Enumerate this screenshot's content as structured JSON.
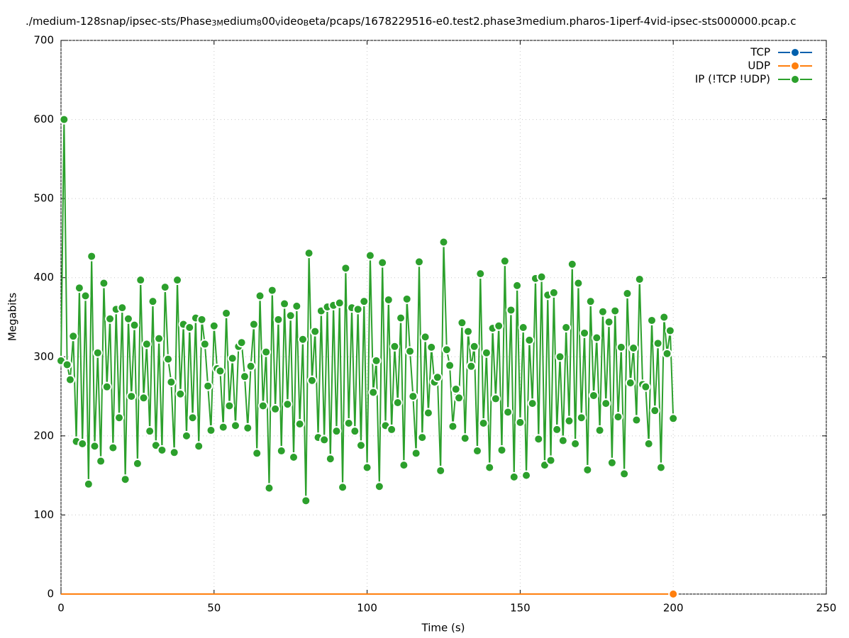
{
  "chart_data": {
    "type": "line",
    "title": [
      "./medium-128snap/ipsec-sts/Phase",
      "3M",
      "edium",
      "8",
      "00",
      "V",
      "ideo",
      "B",
      "eta/pcaps/1678229516-e0.test2.phase3medium.pharos-1iperf-4vid-ipsec-sts000000.pcap.c"
    ],
    "xlabel": "Time (s)",
    "ylabel": "Megabits",
    "xlim": [
      0,
      250
    ],
    "xticks": [
      0,
      50,
      100,
      150,
      200,
      250
    ],
    "ylim": [
      0,
      700
    ],
    "yticks": [
      0,
      100,
      200,
      300,
      400,
      500,
      600,
      700
    ],
    "grid": true,
    "legend": "top-right",
    "x": [
      0,
      1,
      2,
      3,
      4,
      5,
      6,
      7,
      8,
      9,
      10,
      11,
      12,
      13,
      14,
      15,
      16,
      17,
      18,
      19,
      20,
      21,
      22,
      23,
      24,
      25,
      26,
      27,
      28,
      29,
      30,
      31,
      32,
      33,
      34,
      35,
      36,
      37,
      38,
      39,
      40,
      41,
      42,
      43,
      44,
      45,
      46,
      47,
      48,
      49,
      50,
      51,
      52,
      53,
      54,
      55,
      56,
      57,
      58,
      59,
      60,
      61,
      62,
      63,
      64,
      65,
      66,
      67,
      68,
      69,
      70,
      71,
      72,
      73,
      74,
      75,
      76,
      77,
      78,
      79,
      80,
      81,
      82,
      83,
      84,
      85,
      86,
      87,
      88,
      89,
      90,
      91,
      92,
      93,
      94,
      95,
      96,
      97,
      98,
      99,
      100,
      101,
      102,
      103,
      104,
      105,
      106,
      107,
      108,
      109,
      110,
      111,
      112,
      113,
      114,
      115,
      116,
      117,
      118,
      119,
      120,
      121,
      122,
      123,
      124,
      125,
      126,
      127,
      128,
      129,
      130,
      131,
      132,
      133,
      134,
      135,
      136,
      137,
      138,
      139,
      140,
      141,
      142,
      143,
      144,
      145,
      146,
      147,
      148,
      149,
      150,
      151,
      152,
      153,
      154,
      155,
      156,
      157,
      158,
      159,
      160,
      161,
      162,
      163,
      164,
      165,
      166,
      167,
      168,
      169,
      170,
      171,
      172,
      173,
      174,
      175,
      176,
      177,
      178,
      179,
      180,
      181,
      182,
      183,
      184,
      185,
      186,
      187,
      188,
      189,
      190,
      191,
      192,
      193,
      194,
      195,
      196,
      197,
      198,
      199,
      200
    ],
    "series": [
      {
        "name": "TCP",
        "color": "#0060ad",
        "values": [
          0,
          0,
          0,
          0,
          0,
          0,
          0,
          0,
          0,
          0,
          0,
          0,
          0,
          0,
          0,
          0,
          0,
          0,
          0,
          0,
          0,
          0,
          0,
          0,
          0,
          0,
          0,
          0,
          0,
          0,
          0,
          0,
          0,
          0,
          0,
          0,
          0,
          0,
          0,
          0,
          0,
          0,
          0,
          0,
          0,
          0,
          0,
          0,
          0,
          0,
          0,
          0,
          0,
          0,
          0,
          0,
          0,
          0,
          0,
          0,
          0,
          0,
          0,
          0,
          0,
          0,
          0,
          0,
          0,
          0,
          0,
          0,
          0,
          0,
          0,
          0,
          0,
          0,
          0,
          0,
          0,
          0,
          0,
          0,
          0,
          0,
          0,
          0,
          0,
          0,
          0,
          0,
          0,
          0,
          0,
          0,
          0,
          0,
          0,
          0,
          0,
          0,
          0,
          0,
          0,
          0,
          0,
          0,
          0,
          0,
          0,
          0,
          0,
          0,
          0,
          0,
          0,
          0,
          0,
          0,
          0,
          0,
          0,
          0,
          0,
          0,
          0,
          0,
          0,
          0,
          0,
          0,
          0,
          0,
          0,
          0,
          0,
          0,
          0,
          0,
          0,
          0,
          0,
          0,
          0,
          0,
          0,
          0,
          0,
          0,
          0,
          0,
          0,
          0,
          0,
          0,
          0,
          0,
          0,
          0,
          0,
          0,
          0,
          0,
          0,
          0,
          0,
          0,
          0,
          0,
          0,
          0,
          0,
          0,
          0,
          0,
          0,
          0,
          0,
          0,
          0,
          0,
          0,
          0,
          0,
          0,
          0,
          0,
          0,
          0,
          0,
          0,
          0,
          0,
          0,
          0,
          0,
          0,
          0,
          0,
          0
        ]
      },
      {
        "name": "UDP",
        "color": "#ff7f0e",
        "values": [
          0,
          0,
          0,
          0,
          0,
          0,
          0,
          0,
          0,
          0,
          0,
          0,
          0,
          0,
          0,
          0,
          0,
          0,
          0,
          0,
          0,
          0,
          0,
          0,
          0,
          0,
          0,
          0,
          0,
          0,
          0,
          0,
          0,
          0,
          0,
          0,
          0,
          0,
          0,
          0,
          0,
          0,
          0,
          0,
          0,
          0,
          0,
          0,
          0,
          0,
          0,
          0,
          0,
          0,
          0,
          0,
          0,
          0,
          0,
          0,
          0,
          0,
          0,
          0,
          0,
          0,
          0,
          0,
          0,
          0,
          0,
          0,
          0,
          0,
          0,
          0,
          0,
          0,
          0,
          0,
          0,
          0,
          0,
          0,
          0,
          0,
          0,
          0,
          0,
          0,
          0,
          0,
          0,
          0,
          0,
          0,
          0,
          0,
          0,
          0,
          0,
          0,
          0,
          0,
          0,
          0,
          0,
          0,
          0,
          0,
          0,
          0,
          0,
          0,
          0,
          0,
          0,
          0,
          0,
          0,
          0,
          0,
          0,
          0,
          0,
          0,
          0,
          0,
          0,
          0,
          0,
          0,
          0,
          0,
          0,
          0,
          0,
          0,
          0,
          0,
          0,
          0,
          0,
          0,
          0,
          0,
          0,
          0,
          0,
          0,
          0,
          0,
          0,
          0,
          0,
          0,
          0,
          0,
          0,
          0,
          0,
          0,
          0,
          0,
          0,
          0,
          0,
          0,
          0,
          0,
          0,
          0,
          0,
          0,
          0,
          0,
          0,
          0,
          0,
          0,
          0,
          0,
          0,
          0,
          0,
          0,
          0,
          0,
          0,
          0,
          0,
          0,
          0,
          0,
          0,
          0,
          0,
          0,
          0,
          0,
          0
        ]
      },
      {
        "name": "IP (!TCP  !UDP)",
        "color": "#2ca02c",
        "values": [
          295,
          600,
          290,
          271,
          326,
          193,
          387,
          190,
          377,
          139,
          427,
          187,
          305,
          168,
          393,
          262,
          348,
          185,
          360,
          223,
          362,
          145,
          348,
          250,
          340,
          165,
          397,
          248,
          316,
          206,
          370,
          188,
          323,
          182,
          388,
          297,
          268,
          179,
          397,
          253,
          341,
          200,
          337,
          223,
          349,
          187,
          347,
          316,
          263,
          207,
          339,
          285,
          282,
          211,
          355,
          238,
          298,
          213,
          313,
          318,
          275,
          210,
          288,
          341,
          178,
          377,
          238,
          306,
          134,
          384,
          234,
          347,
          181,
          367,
          240,
          352,
          173,
          364,
          215,
          322,
          118,
          431,
          270,
          332,
          198,
          358,
          195,
          363,
          171,
          365,
          206,
          368,
          135,
          412,
          216,
          362,
          206,
          360,
          188,
          370,
          160,
          428,
          255,
          295,
          136,
          419,
          213,
          372,
          208,
          313,
          242,
          349,
          163,
          373,
          307,
          250,
          178,
          420,
          198,
          325,
          229,
          312,
          268,
          274,
          156,
          445,
          309,
          289,
          212,
          259,
          248,
          343,
          197,
          332,
          288,
          313,
          181,
          405,
          216,
          305,
          160,
          336,
          247,
          339,
          182,
          421,
          230,
          359,
          148,
          390,
          217,
          337,
          150,
          321,
          241,
          399,
          196,
          401,
          163,
          378,
          169,
          381,
          208,
          300,
          194,
          337,
          219,
          417,
          190,
          393,
          223,
          330,
          157,
          370,
          251,
          324,
          207,
          357,
          241,
          344,
          166,
          358,
          224,
          312,
          152,
          380,
          267,
          311,
          220,
          398,
          265,
          262,
          190,
          346,
          232,
          317,
          160,
          350,
          304,
          333,
          222
        ]
      }
    ]
  }
}
